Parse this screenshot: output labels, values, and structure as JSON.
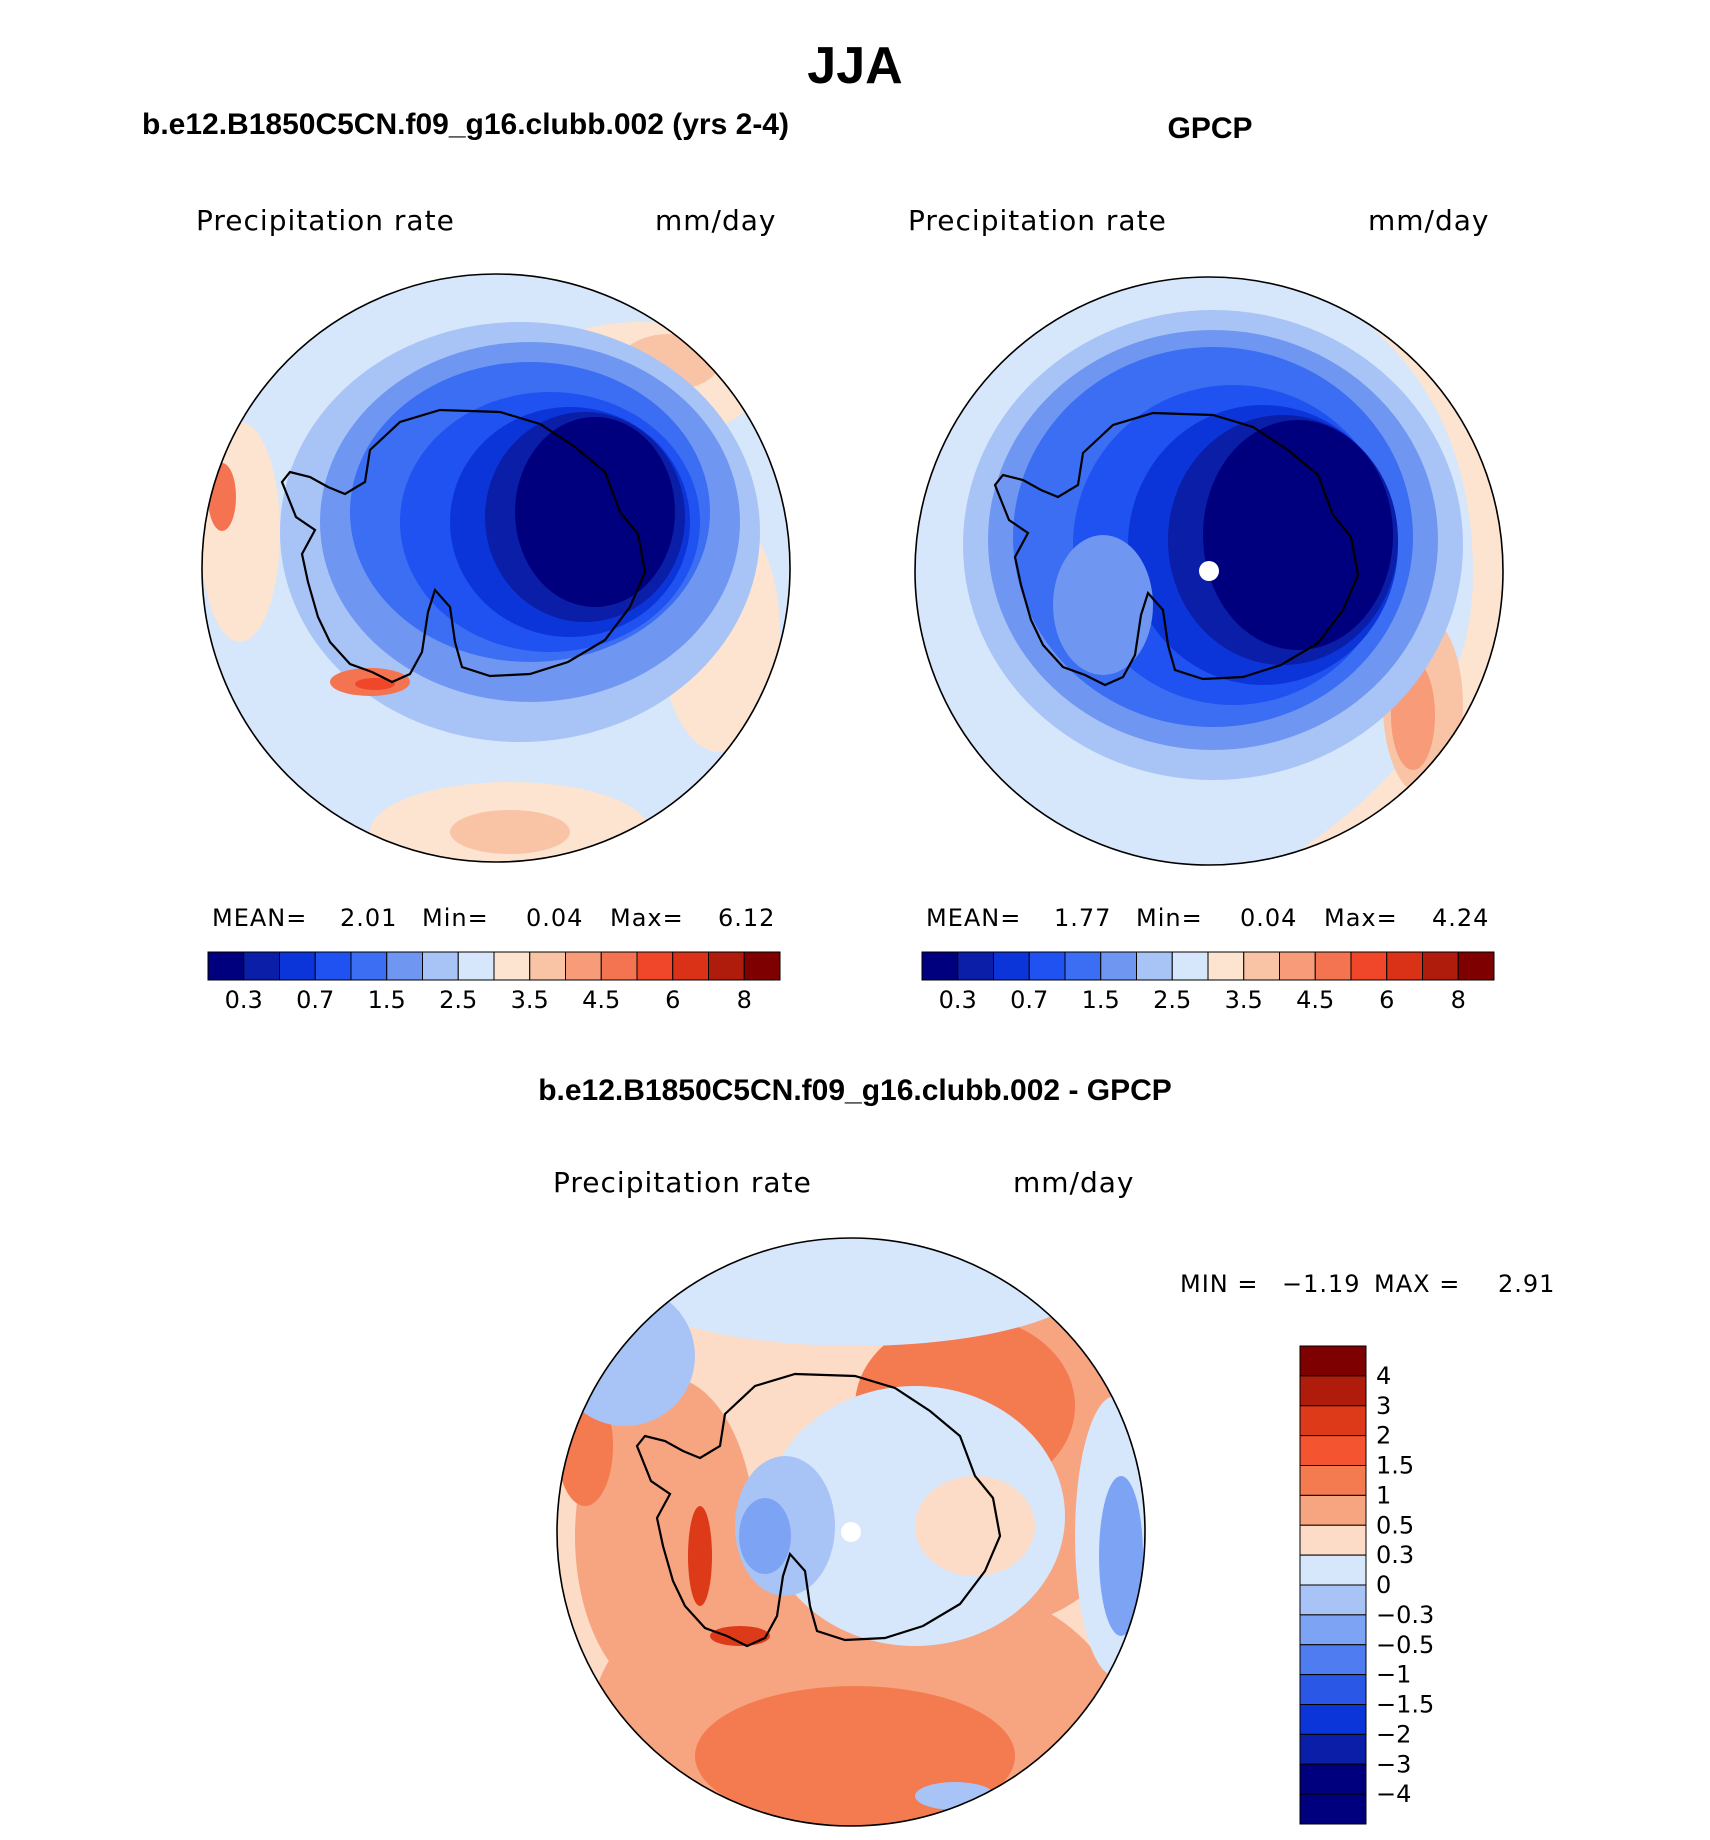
{
  "figure": {
    "season_title": "JJA",
    "colors": {
      "precip_levels": [
        "#00007e",
        "#0a1ea8",
        "#0c35d9",
        "#1f52f0",
        "#3b6ef2",
        "#6f97f2",
        "#a8c4f6",
        "#d6e6fb",
        "#fde4d0",
        "#f9c3a6",
        "#f79b78",
        "#f47350",
        "#f0472b",
        "#d93217",
        "#b01c0c",
        "#7f0000"
      ],
      "diff_levels": [
        "#7f0000",
        "#b01c0c",
        "#dd3a1a",
        "#f4542f",
        "#f47a50",
        "#f7a481",
        "#fcdcc6",
        "#d6e6fb",
        "#a8c4f6",
        "#7da4f4",
        "#4f7cf0",
        "#2a57e6",
        "#0c35d9",
        "#0a1ea8",
        "#00007e"
      ]
    }
  },
  "panel_model": {
    "header": "b.e12.B1850C5CN.f09_g16.clubb.002 (yrs 2-4)",
    "var_label": "Precipitation rate",
    "units": "mm/day",
    "stats": {
      "mean_label": "MEAN=",
      "mean": "2.01",
      "min_label": "Min=",
      "min": "0.04",
      "max_label": "Max=",
      "max": "6.12"
    },
    "colorbar_ticks": [
      "0.3",
      "0.7",
      "1.5",
      "2.5",
      "3.5",
      "4.5",
      "6",
      "8"
    ]
  },
  "panel_obs": {
    "header": "GPCP",
    "var_label": "Precipitation rate",
    "units": "mm/day",
    "stats": {
      "mean_label": "MEAN=",
      "mean": "1.77",
      "min_label": "Min=",
      "min": "0.04",
      "max_label": "Max=",
      "max": "4.24"
    },
    "colorbar_ticks": [
      "0.3",
      "0.7",
      "1.5",
      "2.5",
      "3.5",
      "4.5",
      "6",
      "8"
    ]
  },
  "panel_diff": {
    "header": "b.e12.B1850C5CN.f09_g16.clubb.002 - GPCP",
    "var_label": "Precipitation rate",
    "units": "mm/day",
    "min_label": "MIN =",
    "min": "−1.19",
    "max_label": "MAX =",
    "max": "2.91",
    "colorbar_labels": [
      "4",
      "3",
      "2",
      "1.5",
      "1",
      "0.5",
      "0.3",
      "0",
      "−0.3",
      "−0.5",
      "−1",
      "−1.5",
      "−2",
      "−3",
      "−4"
    ]
  }
}
